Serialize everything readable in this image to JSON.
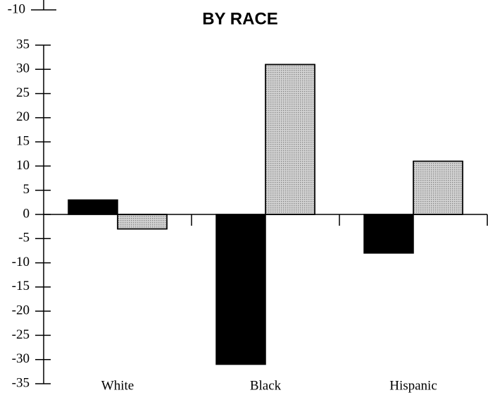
{
  "chart_data": {
    "type": "bar",
    "title": "BY RACE",
    "annotation": "-10",
    "categories": [
      "White",
      "Black",
      "Hispanic"
    ],
    "series": [
      {
        "color": "#000000",
        "values": [
          3,
          -31,
          -8
        ]
      },
      {
        "color": "#d4d4d4",
        "values": [
          -3,
          31,
          11
        ]
      }
    ],
    "ylim": [
      -35,
      35
    ],
    "yticks": [
      -35,
      -30,
      -25,
      -20,
      -15,
      -10,
      -5,
      0,
      5,
      10,
      15,
      20,
      25,
      30,
      35
    ],
    "grid": false
  }
}
